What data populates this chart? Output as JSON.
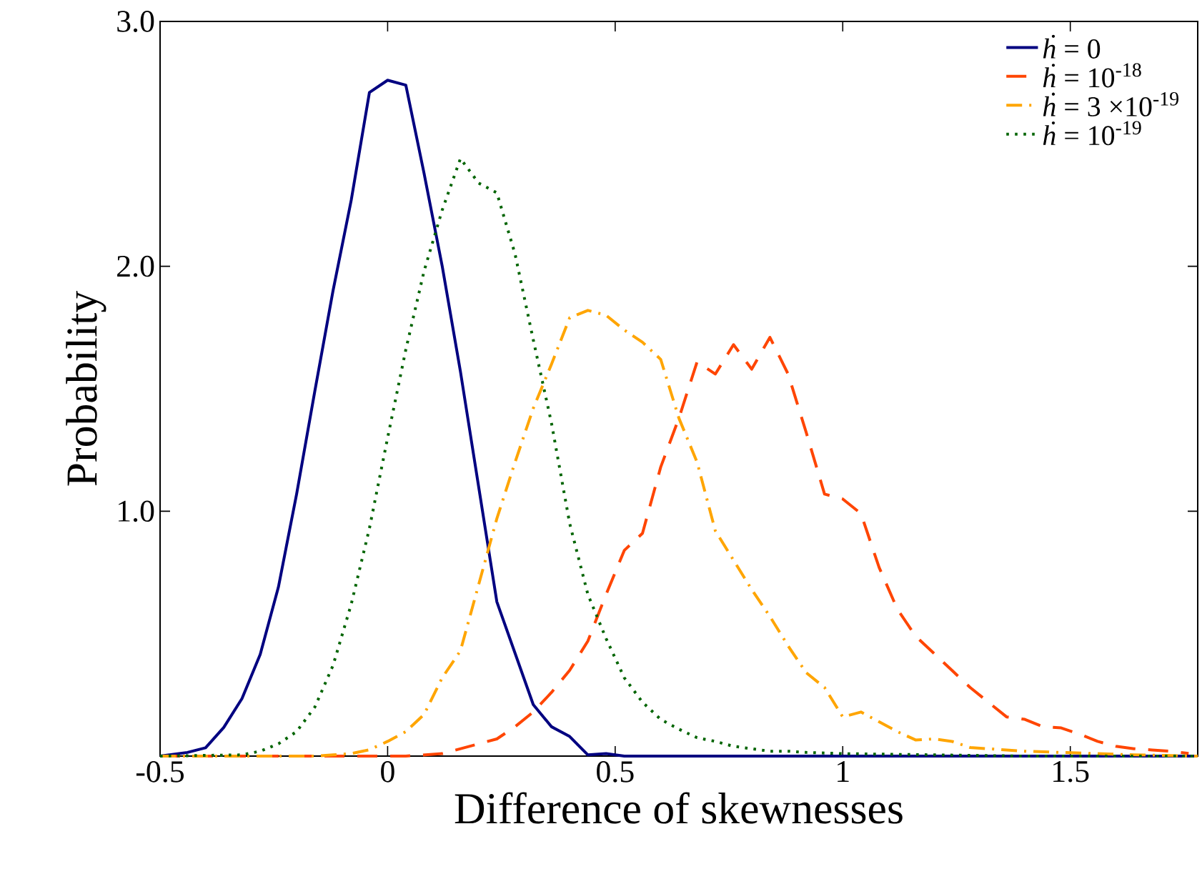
{
  "chart_data": {
    "type": "line",
    "xlabel": "Difference of skewnesses",
    "ylabel": "Probability",
    "xlim": [
      -0.5,
      1.78
    ],
    "ylim": [
      0,
      3.0
    ],
    "xticks": [
      -0.5,
      0,
      0.5,
      1,
      1.5
    ],
    "yticks": [
      {
        "value": 0,
        "label": null
      },
      {
        "value": 1,
        "label": "1.0"
      },
      {
        "value": 2,
        "label": "2.0"
      },
      {
        "value": 3,
        "label": "3.0"
      }
    ],
    "legend": "top right",
    "series": [
      {
        "name": "*ḣ* = 0",
        "color": "#000080",
        "line_style": "solid",
        "x": [
          -0.5,
          -0.44,
          -0.4,
          -0.36,
          -0.32,
          -0.28,
          -0.24,
          -0.2,
          -0.16,
          -0.12,
          -0.08,
          -0.04,
          0,
          0.04,
          0.08,
          0.12,
          0.16,
          0.2,
          0.24,
          0.28,
          0.32,
          0.36,
          0.4,
          0.44,
          0.48,
          0.52,
          1.0,
          1.5,
          1.78
        ],
        "values": [
          0,
          0.015,
          0.034,
          0.117,
          0.235,
          0.415,
          0.69,
          1.07,
          1.49,
          1.9,
          2.27,
          2.71,
          2.76,
          2.74,
          2.38,
          2.0,
          1.57,
          1.1,
          0.63,
          0.42,
          0.21,
          0.12,
          0.08,
          0.005,
          0.01,
          0,
          0,
          0,
          0
        ]
      },
      {
        "name": "*ḣ* = 10$^{-18}$",
        "color": "#ff4500",
        "line_style": "dashed",
        "x": [
          -0.5,
          0.04,
          0.12,
          0.2,
          0.24,
          0.28,
          0.32,
          0.36,
          0.4,
          0.44,
          0.48,
          0.52,
          0.56,
          0.6,
          0.64,
          0.68,
          0.72,
          0.76,
          0.8,
          0.84,
          0.88,
          0.92,
          0.96,
          1.0,
          1.04,
          1.08,
          1.12,
          1.16,
          1.2,
          1.24,
          1.28,
          1.32,
          1.36,
          1.4,
          1.44,
          1.48,
          1.52,
          1.56,
          1.6,
          1.64,
          1.68,
          1.72,
          1.76
        ],
        "values": [
          0,
          0,
          0.01,
          0.05,
          0.07,
          0.12,
          0.18,
          0.26,
          0.35,
          0.47,
          0.66,
          0.84,
          0.91,
          1.18,
          1.38,
          1.61,
          1.56,
          1.68,
          1.58,
          1.71,
          1.56,
          1.32,
          1.07,
          1.05,
          0.99,
          0.77,
          0.6,
          0.49,
          0.42,
          0.35,
          0.28,
          0.22,
          0.16,
          0.15,
          0.12,
          0.115,
          0.09,
          0.06,
          0.04,
          0.03,
          0.025,
          0.02,
          0.011
        ]
      },
      {
        "name": "*ḣ* = 3 ×10$^{-19}$",
        "color": "#ffa500",
        "line_style": "dashdot",
        "x": [
          -0.5,
          -0.16,
          -0.12,
          -0.08,
          -0.04,
          0,
          0.04,
          0.08,
          0.12,
          0.16,
          0.2,
          0.24,
          0.28,
          0.32,
          0.36,
          0.4,
          0.44,
          0.48,
          0.52,
          0.56,
          0.6,
          0.64,
          0.68,
          0.72,
          0.76,
          0.8,
          0.84,
          0.88,
          0.92,
          0.96,
          1.0,
          1.04,
          1.08,
          1.12,
          1.16,
          1.2,
          1.24,
          1.28,
          1.32,
          1.36,
          1.4,
          1.48,
          1.56,
          1.64,
          1.78
        ],
        "values": [
          0,
          0,
          0.005,
          0.01,
          0.026,
          0.06,
          0.1,
          0.17,
          0.32,
          0.43,
          0.7,
          0.97,
          1.2,
          1.42,
          1.6,
          1.79,
          1.82,
          1.8,
          1.74,
          1.69,
          1.62,
          1.38,
          1.2,
          0.92,
          0.8,
          0.68,
          0.57,
          0.45,
          0.34,
          0.28,
          0.16,
          0.18,
          0.14,
          0.1,
          0.066,
          0.07,
          0.06,
          0.035,
          0.03,
          0.025,
          0.02,
          0.015,
          0.01,
          0.005,
          0
        ]
      },
      {
        "name": "*ḣ* = 10$^{-19}$",
        "color": "#006400",
        "line_style": "dotted",
        "x": [
          -0.5,
          -0.32,
          -0.28,
          -0.24,
          -0.2,
          -0.16,
          -0.12,
          -0.08,
          -0.04,
          0,
          0.04,
          0.08,
          0.12,
          0.16,
          0.2,
          0.24,
          0.28,
          0.32,
          0.36,
          0.4,
          0.44,
          0.48,
          0.52,
          0.56,
          0.6,
          0.64,
          0.68,
          0.72,
          0.76,
          0.8,
          0.84,
          0.88,
          0.92,
          1.0,
          1.2,
          1.4,
          1.78
        ],
        "values": [
          0,
          0.005,
          0.02,
          0.05,
          0.1,
          0.2,
          0.37,
          0.62,
          0.93,
          1.3,
          1.66,
          1.98,
          2.23,
          2.44,
          2.34,
          2.3,
          2.05,
          1.7,
          1.36,
          0.95,
          0.66,
          0.48,
          0.32,
          0.22,
          0.15,
          0.11,
          0.075,
          0.06,
          0.04,
          0.03,
          0.02,
          0.02,
          0.015,
          0.01,
          0.005,
          0,
          0
        ]
      }
    ]
  }
}
